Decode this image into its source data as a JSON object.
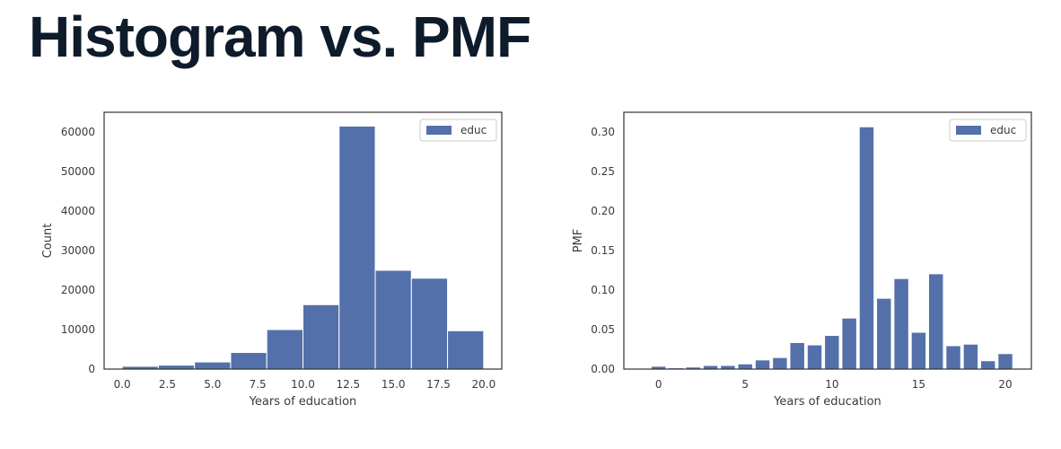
{
  "page": {
    "title": "Histogram vs. PMF"
  },
  "chart_data": [
    {
      "type": "bar",
      "subtype": "histogram",
      "xlabel": "Years of education",
      "ylabel": "Count",
      "legend": [
        "educ"
      ],
      "legend_position": "top-right",
      "grid": false,
      "xlim": [
        -1,
        21
      ],
      "ylim": [
        0,
        65000
      ],
      "xticks": [
        0.0,
        2.5,
        5.0,
        7.5,
        10.0,
        12.5,
        15.0,
        17.5,
        20.0
      ],
      "xtick_labels": [
        "0.0",
        "2.5",
        "5.0",
        "7.5",
        "10.0",
        "12.5",
        "15.0",
        "17.5",
        "20.0"
      ],
      "yticks": [
        0,
        10000,
        20000,
        30000,
        40000,
        50000,
        60000
      ],
      "ytick_labels": [
        "0",
        "10000",
        "20000",
        "30000",
        "40000",
        "50000",
        "60000"
      ],
      "bin_edges": [
        0,
        2,
        4,
        6,
        8,
        10,
        12,
        14,
        16,
        18,
        20
      ],
      "values": [
        700,
        1000,
        1800,
        4200,
        10000,
        16300,
        61500,
        25000,
        23000,
        9700
      ],
      "color": "#5470ab"
    },
    {
      "type": "bar",
      "subtype": "pmf",
      "xlabel": "Years of education",
      "ylabel": "PMF",
      "legend": [
        "educ"
      ],
      "legend_position": "top-right",
      "grid": false,
      "xlim": [
        -2,
        21.5
      ],
      "ylim": [
        0,
        0.325
      ],
      "xticks": [
        0,
        5,
        10,
        15,
        20
      ],
      "xtick_labels": [
        "0",
        "5",
        "10",
        "15",
        "20"
      ],
      "yticks": [
        0,
        0.05,
        0.1,
        0.15,
        0.2,
        0.25,
        0.3
      ],
      "ytick_labels": [
        "0.00",
        "0.05",
        "0.10",
        "0.15",
        "0.20",
        "0.25",
        "0.30"
      ],
      "x": [
        0,
        1,
        2,
        3,
        4,
        5,
        6,
        7,
        8,
        9,
        10,
        11,
        12,
        13,
        14,
        15,
        16,
        17,
        18,
        19,
        20
      ],
      "values": [
        0.003,
        0.001,
        0.002,
        0.004,
        0.004,
        0.006,
        0.011,
        0.014,
        0.033,
        0.03,
        0.042,
        0.064,
        0.306,
        0.089,
        0.114,
        0.046,
        0.12,
        0.029,
        0.031,
        0.01,
        0.019
      ],
      "bar_width": 0.8,
      "color": "#5470ab"
    }
  ]
}
